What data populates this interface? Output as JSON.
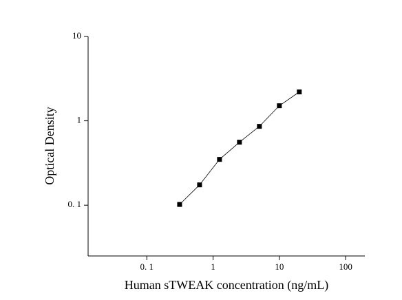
{
  "chart_data": {
    "type": "scatter",
    "x_label": "Human sTWEAK concentration (ng/mL)",
    "y_label": "Optical Density",
    "x": [
      0.3125,
      0.625,
      1.25,
      2.5,
      5,
      10,
      20
    ],
    "values": [
      0.102,
      0.174,
      0.349,
      0.558,
      0.86,
      1.51,
      2.2
    ],
    "color": "#000000",
    "xlog": true,
    "ylog": true,
    "xlim": [
      0.013,
      195
    ],
    "ylim": [
      0.025,
      10
    ],
    "xticks": [
      {
        "value": 0.1,
        "label": "0. 1"
      },
      1,
      10,
      100
    ],
    "yticks": [
      {
        "value": 0.1,
        "label": "0. 1"
      },
      1,
      10
    ]
  }
}
